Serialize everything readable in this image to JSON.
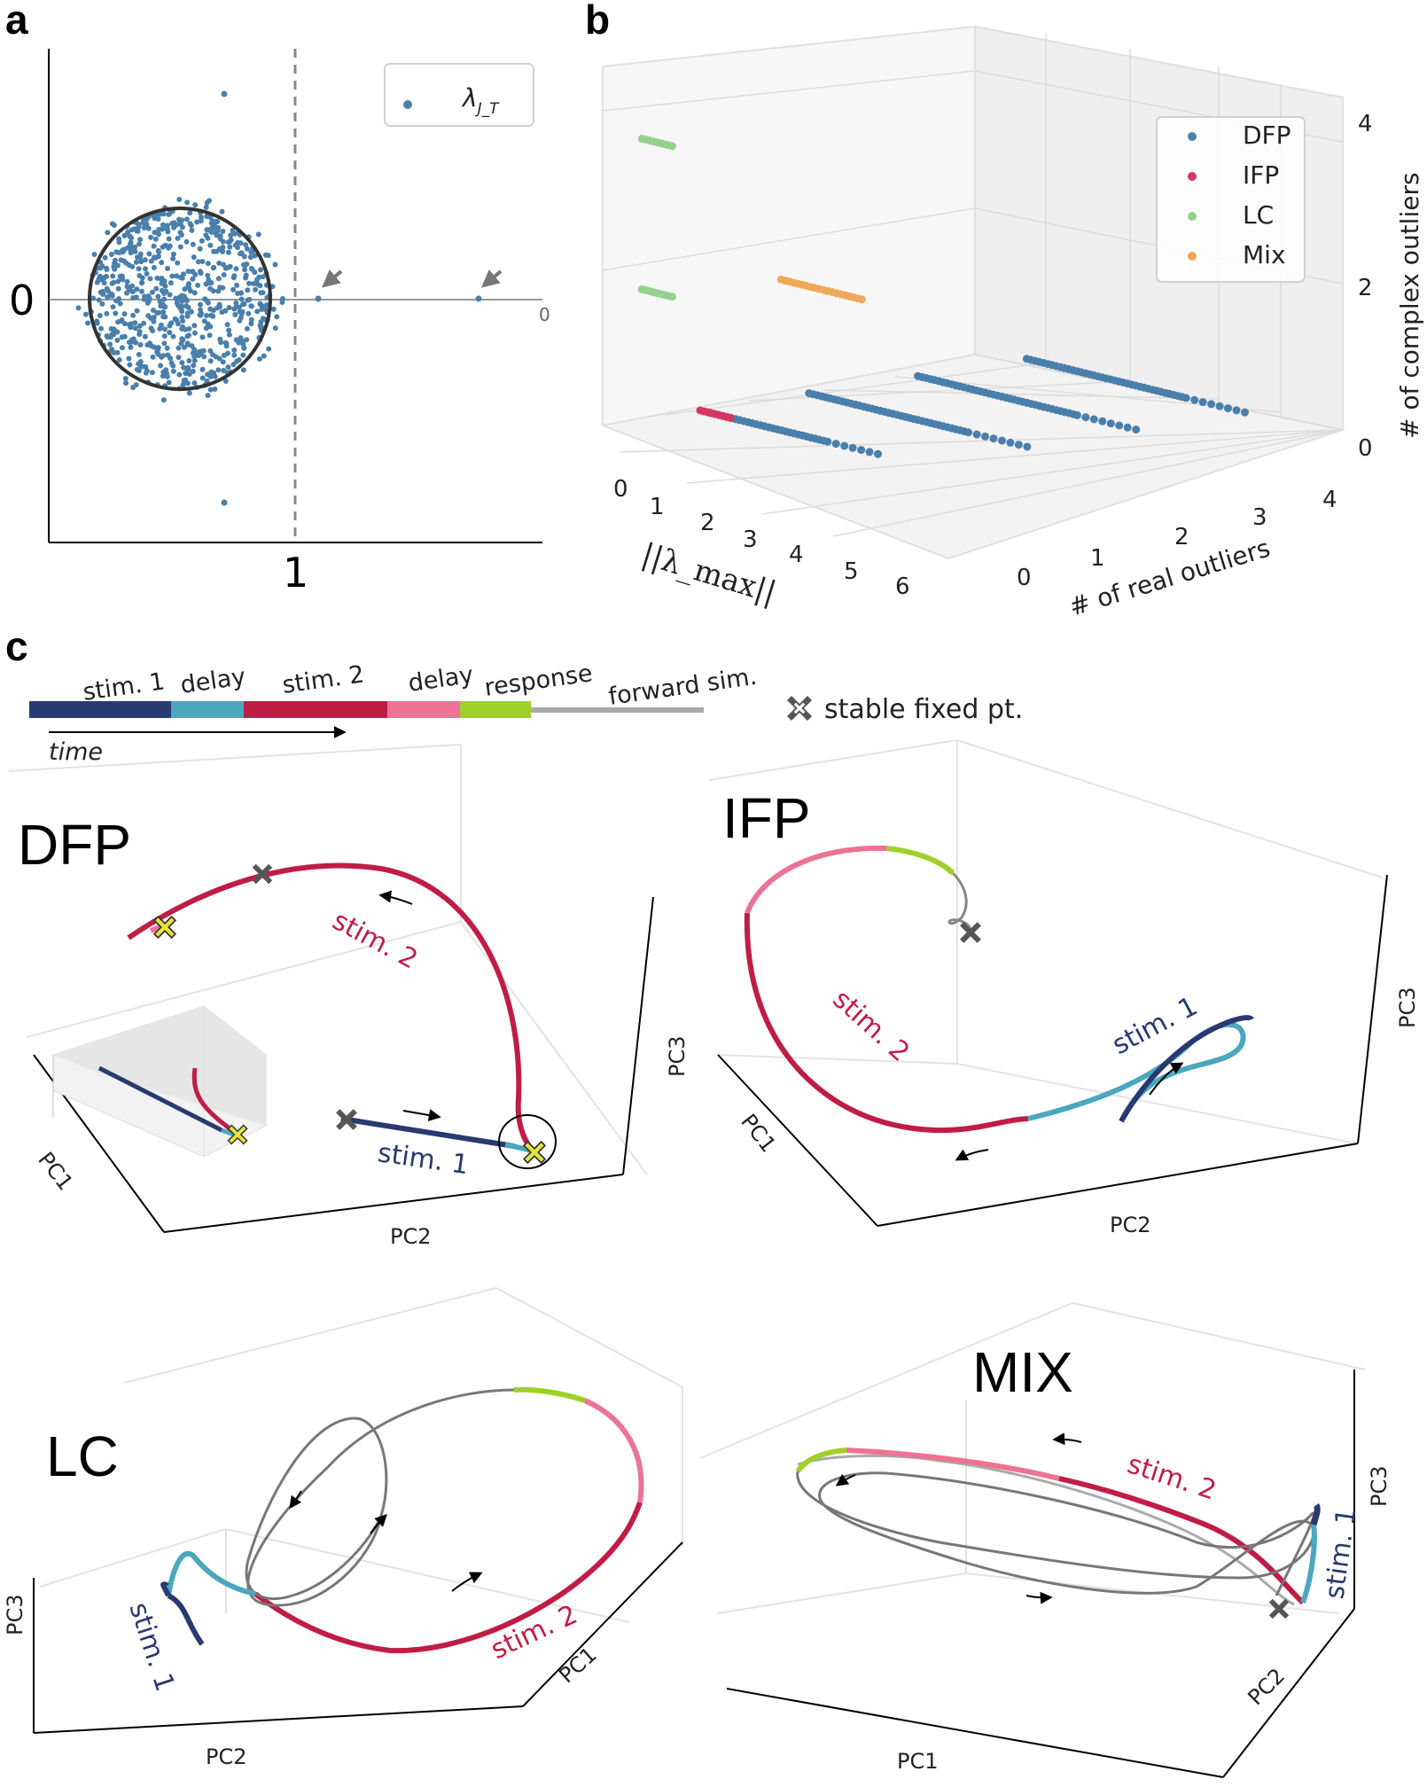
{
  "panels": {
    "a": {
      "letter": "a",
      "y_zero_label": "0",
      "x_one_label": "1",
      "right_zero_label": "0",
      "legend_symbol": "λ",
      "legend_subscript": "J_T"
    },
    "b": {
      "letter": "b",
      "axis_x_title": "||λ_max||",
      "axis_y_title": "# of real outliers",
      "axis_z_title": "# of complex outliers",
      "x_ticks": [
        "0",
        "1",
        "2",
        "3",
        "4",
        "5",
        "6"
      ],
      "y_ticks": [
        "0",
        "1",
        "2",
        "3",
        "4"
      ],
      "z_ticks": [
        "0",
        "2",
        "4"
      ],
      "legend": [
        {
          "name": "DFP",
          "color": "#4a7fab"
        },
        {
          "name": "IFP",
          "color": "#d5375f"
        },
        {
          "name": "LC",
          "color": "#97d08e"
        },
        {
          "name": "Mix",
          "color": "#eeaa5a"
        }
      ]
    },
    "c": {
      "letter": "c",
      "phases": [
        {
          "label": "stim. 1",
          "color": "#283a6f"
        },
        {
          "label": "delay",
          "color": "#4ba7bd"
        },
        {
          "label": "stim. 2",
          "color": "#c01d45"
        },
        {
          "label": "delay",
          "color": "#ec7394"
        },
        {
          "label": "response",
          "color": "#9fd02a"
        },
        {
          "label": "forward sim.",
          "color": "#a9a9a9"
        }
      ],
      "time_label": "time",
      "fixed_point_legend": "stable fixed pt.",
      "subplots": {
        "dfp": {
          "title": "DFP",
          "stim1": "stim. 1",
          "stim2": "stim. 2",
          "pc1": "PC1",
          "pc2": "PC2",
          "pc3": "PC3"
        },
        "ifp": {
          "title": "IFP",
          "stim1": "stim. 1",
          "stim2": "stim. 2",
          "pc1": "PC1",
          "pc2": "PC2",
          "pc3": "PC3"
        },
        "lc": {
          "title": "LC",
          "stim1": "stim. 1",
          "stim2": "stim. 2",
          "pc1": "PC1",
          "pc2": "PC2",
          "pc3": "PC3"
        },
        "mix": {
          "title": "MIX",
          "stim1": "stim. 1",
          "stim2": "stim. 2",
          "pc1": "PC1",
          "pc2": "PC2",
          "pc3": "PC3"
        }
      }
    }
  },
  "chart_data": [
    {
      "type": "scatter",
      "title": "",
      "description_source": "panel a",
      "series": [
        {
          "name": "λ_JT"
        }
      ],
      "marked_values": {
        "x": [
          "1"
        ],
        "y": [
          "0"
        ]
      },
      "grid": false,
      "legend_position": "top-right"
    },
    {
      "type": "scatter",
      "title": "",
      "description_source": "panel b",
      "xlabel": "||λ_max||",
      "ylabel": "# of real outliers",
      "zlabel": "# of complex outliers",
      "xlim": [
        0,
        6
      ],
      "ylim": [
        0,
        4
      ],
      "zlim": [
        0,
        4
      ],
      "series": [
        {
          "name": "DFP",
          "points": [
            {
              "lambda_range": [
                0.2,
                3.6
              ],
              "real": 1,
              "complex": 0
            },
            {
              "lambda_range": [
                0.4,
                4.8
              ],
              "real": 2,
              "complex": 0
            },
            {
              "lambda_range": [
                0.8,
                5.2
              ],
              "real": 3,
              "complex": 0
            },
            {
              "lambda_range": [
                1.2,
                5.6
              ],
              "real": 4,
              "complex": 0
            }
          ]
        },
        {
          "name": "IFP",
          "points": [
            {
              "lambda_range": [
                0.0,
                0.6
              ],
              "real": 1,
              "complex": 0
            }
          ]
        },
        {
          "name": "LC",
          "points": [
            {
              "lambda_range": [
                0.6,
                1.2
              ],
              "real": 0,
              "complex": 4
            },
            {
              "lambda_range": [
                0.6,
                1.2
              ],
              "real": 0,
              "complex": 2
            }
          ]
        },
        {
          "name": "Mix",
          "points": [
            {
              "lambda_range": [
                1.6,
                3.2
              ],
              "real": 1,
              "complex": 2
            }
          ]
        }
      ],
      "grid": true,
      "legend_position": "top-right"
    }
  ]
}
